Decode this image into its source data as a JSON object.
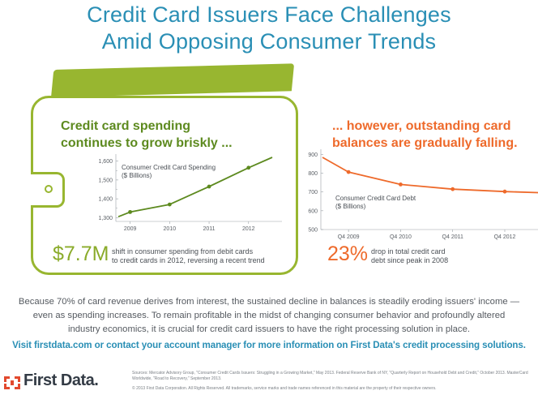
{
  "title_line1": "Credit Card Issuers Face Challenges",
  "title_line2": "Amid Opposing Consumer Trends",
  "left": {
    "heading_line1": "Credit card spending",
    "heading_line2": "continues to grow briskly ...",
    "big_stat": "$7.7M",
    "note_line1": "shift in consumer spending from debit cards",
    "note_line2": "to credit cards in 2012, reversing a recent trend"
  },
  "right": {
    "heading_line1": "... however, outstanding card",
    "heading_line2": "balances are gradually falling.",
    "big_stat": "23%",
    "note_line1": "drop in total credit card",
    "note_line2": "debt since peak in 2008"
  },
  "body_text": [
    "Because 70% of card revenue derives from interest, the sustained decline in balances is steadily eroding issuers' income —",
    "even as spending increases. To remain profitable in the midst of changing consumer behavior and profoundly altered",
    "industry economics, it is crucial for credit card issuers to have the right processing solution in place."
  ],
  "cta": "Visit firstdata.com or contact your account manager for more information on First Data's credit processing solutions.",
  "logo_text": "First Data.",
  "sources": "Sources: Mercator Advisory Group, \"Consumer Credit Cards Issuers: Struggling in a Growing Market,\" May 2013. Federal Reserve Bank of NY, \"Quarterly Report on Household Debt and Credit,\" October 2013. MasterCard Worldwide, \"Road to Recovery,\" September 2013.",
  "copyright": "© 2013 First Data Corporation. All Rights Reserved. All trademarks, service marks and trade names referenced in this material are the property of their respective owners.",
  "colors": {
    "title": "#2a8fb5",
    "green": "#98b630",
    "green_text": "#5d8a1f",
    "orange": "#ee6a2b"
  },
  "chart_data": [
    {
      "type": "line",
      "title_line1": "Consumer Credit Card Spending",
      "title_line2": "($ Billions)",
      "x": [
        2008.7,
        2009,
        2010,
        2011,
        2012,
        2012.6
      ],
      "x_ticks": [
        "2009",
        "2010",
        "2011",
        "2012"
      ],
      "y": [
        1305,
        1330,
        1370,
        1465,
        1565,
        1620
      ],
      "y_ticks": [
        "1,300",
        "1,400",
        "1,500",
        "1,600"
      ],
      "y_minor_ticks": [
        "1,350",
        "1,450",
        "1,550"
      ],
      "ylim": [
        1280,
        1620
      ],
      "color": "#5d8a1f",
      "marker_x": [
        2009,
        2010,
        2011,
        2012
      ]
    },
    {
      "type": "line",
      "title_line1": "Consumer Credit Card Debt",
      "title_line2": "($ Billions)",
      "x": [
        2008.5,
        2009,
        2010,
        2011,
        2012,
        2012.7
      ],
      "x_ticks": [
        "Q4 2009",
        "Q4 2010",
        "Q4 2011",
        "Q4 2012"
      ],
      "y": [
        884,
        806,
        740,
        715,
        702,
        696
      ],
      "y_ticks": [
        "500",
        "600",
        "700",
        "800",
        "900"
      ],
      "ylim": [
        500,
        910
      ],
      "color": "#ee6a2b",
      "marker_x": [
        2009,
        2010,
        2011,
        2012
      ]
    }
  ]
}
